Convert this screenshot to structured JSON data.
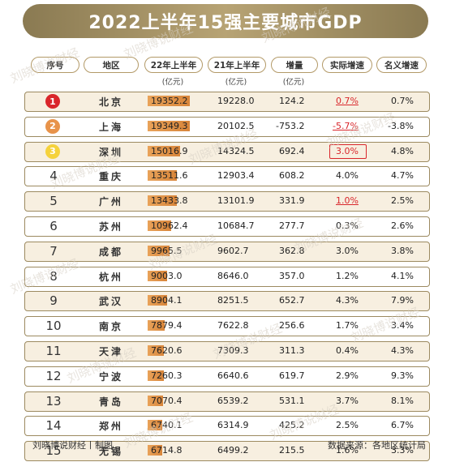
{
  "title": "2022上半年15强主要城市GDP",
  "headers": {
    "rank": "序号",
    "city": "地区",
    "gdp22": "22年上半年",
    "gdp22_unit": "(亿元)",
    "gdp21": "21年上半年",
    "gdp21_unit": "(亿元)",
    "increase": "增量",
    "increase_unit": "(亿元)",
    "real_growth": "实际增速",
    "nominal_growth": "名义增速"
  },
  "medal_colors": [
    "#d9262b",
    "#e8934a",
    "#f5d23c"
  ],
  "highlight_color": "#d9262b",
  "chart_data": {
    "type": "table",
    "bar_column": "gdp22",
    "bar_max": 19352.2,
    "rows": [
      {
        "rank": "1",
        "city": "北京",
        "gdp22": "19352.2",
        "gdp21": "19228.0",
        "increase": "124.2",
        "real": "0.7%",
        "nominal": "0.7%",
        "real_style": "red-underline"
      },
      {
        "rank": "2",
        "city": "上海",
        "gdp22": "19349.3",
        "gdp21": "20102.5",
        "increase": "-753.2",
        "real": "-5.7%",
        "nominal": "-3.8%",
        "real_style": "red-underline"
      },
      {
        "rank": "3",
        "city": "深圳",
        "gdp22": "15016.9",
        "gdp21": "14324.5",
        "increase": "692.4",
        "real": "3.0%",
        "nominal": "4.8%",
        "real_style": "red-box"
      },
      {
        "rank": "4",
        "city": "重庆",
        "gdp22": "13511.6",
        "gdp21": "12903.4",
        "increase": "608.2",
        "real": "4.0%",
        "nominal": "4.7%",
        "real_style": ""
      },
      {
        "rank": "5",
        "city": "广州",
        "gdp22": "13433.8",
        "gdp21": "13101.9",
        "increase": "331.9",
        "real": "1.0%",
        "nominal": "2.5%",
        "real_style": "red-underline"
      },
      {
        "rank": "6",
        "city": "苏州",
        "gdp22": "10962.4",
        "gdp21": "10684.7",
        "increase": "277.7",
        "real": "0.3%",
        "nominal": "2.6%",
        "real_style": ""
      },
      {
        "rank": "7",
        "city": "成都",
        "gdp22": "9965.5",
        "gdp21": "9602.7",
        "increase": "362.8",
        "real": "3.0%",
        "nominal": "3.8%",
        "real_style": ""
      },
      {
        "rank": "8",
        "city": "杭州",
        "gdp22": "9003.0",
        "gdp21": "8646.0",
        "increase": "357.0",
        "real": "1.2%",
        "nominal": "4.1%",
        "real_style": ""
      },
      {
        "rank": "9",
        "city": "武汉",
        "gdp22": "8904.1",
        "gdp21": "8251.5",
        "increase": "652.7",
        "real": "4.3%",
        "nominal": "7.9%",
        "real_style": ""
      },
      {
        "rank": "10",
        "city": "南京",
        "gdp22": "7879.4",
        "gdp21": "7622.8",
        "increase": "256.6",
        "real": "1.7%",
        "nominal": "3.4%",
        "real_style": ""
      },
      {
        "rank": "11",
        "city": "天津",
        "gdp22": "7620.6",
        "gdp21": "7309.3",
        "increase": "311.3",
        "real": "0.4%",
        "nominal": "4.3%",
        "real_style": ""
      },
      {
        "rank": "12",
        "city": "宁波",
        "gdp22": "7260.3",
        "gdp21": "6640.6",
        "increase": "619.7",
        "real": "2.9%",
        "nominal": "9.3%",
        "real_style": ""
      },
      {
        "rank": "13",
        "city": "青岛",
        "gdp22": "7070.4",
        "gdp21": "6539.2",
        "increase": "531.1",
        "real": "3.7%",
        "nominal": "8.1%",
        "real_style": ""
      },
      {
        "rank": "14",
        "city": "郑州",
        "gdp22": "6740.1",
        "gdp21": "6314.9",
        "increase": "425.2",
        "real": "2.5%",
        "nominal": "6.7%",
        "real_style": ""
      },
      {
        "rank": "15",
        "city": "无锡",
        "gdp22": "6714.8",
        "gdp21": "6499.2",
        "increase": "215.5",
        "real": "1.6%",
        "nominal": "3.3%",
        "real_style": ""
      }
    ]
  },
  "footer": {
    "left": "刘晓博说财经丨制图",
    "right": "数据来源：各地区统计局"
  },
  "watermark": "刘晓博说财经"
}
